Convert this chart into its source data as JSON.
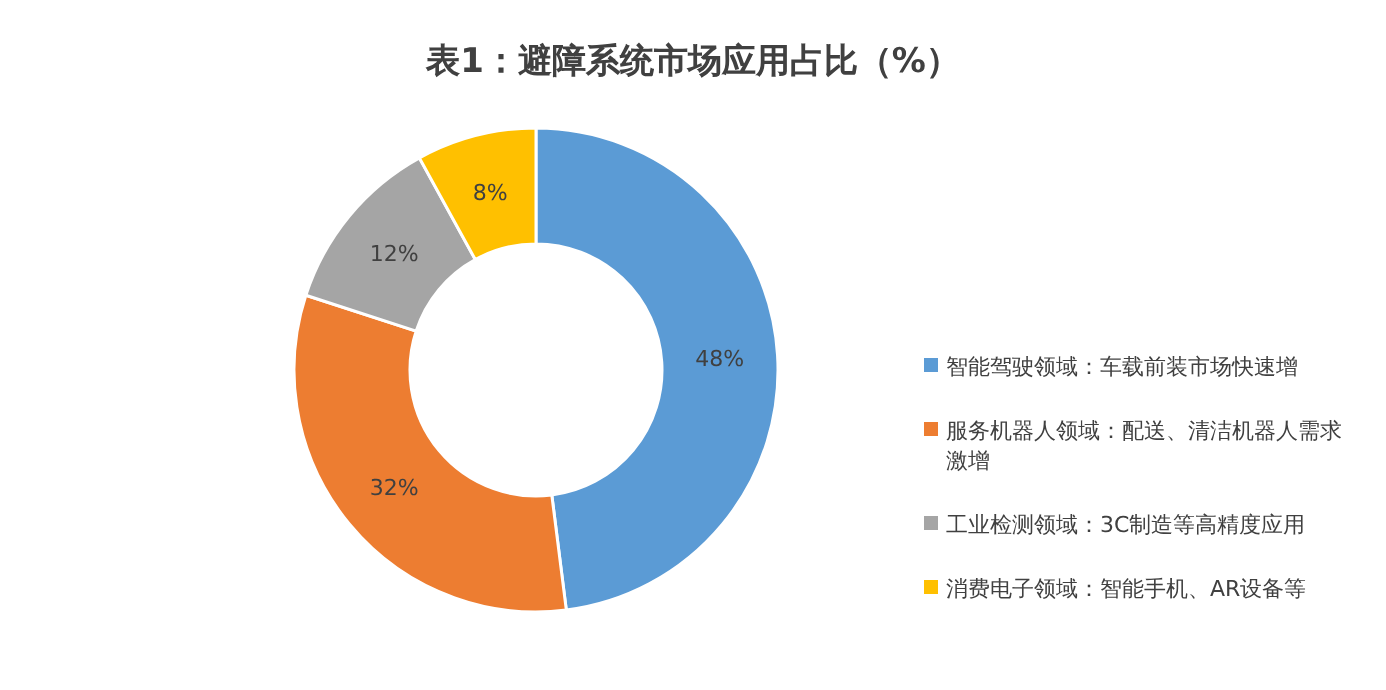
{
  "chart_data": {
    "type": "donut",
    "title": "表1：避障系统市场应用占比（%）",
    "categories": [
      "智能驾驶领域：车载前装市场快速增",
      "服务机器人领域：配送、清洁机器人需求激增",
      "工业检测领域：3C制造等高精度应用",
      "消费电子领域：智能手机、AR设备等"
    ],
    "values": [
      48,
      32,
      12,
      8
    ],
    "value_labels": [
      "48%",
      "32%",
      "12%",
      "8%"
    ],
    "colors": [
      "#5b9bd5",
      "#ed7d31",
      "#a5a5a5",
      "#ffc000"
    ],
    "legend": "right"
  }
}
